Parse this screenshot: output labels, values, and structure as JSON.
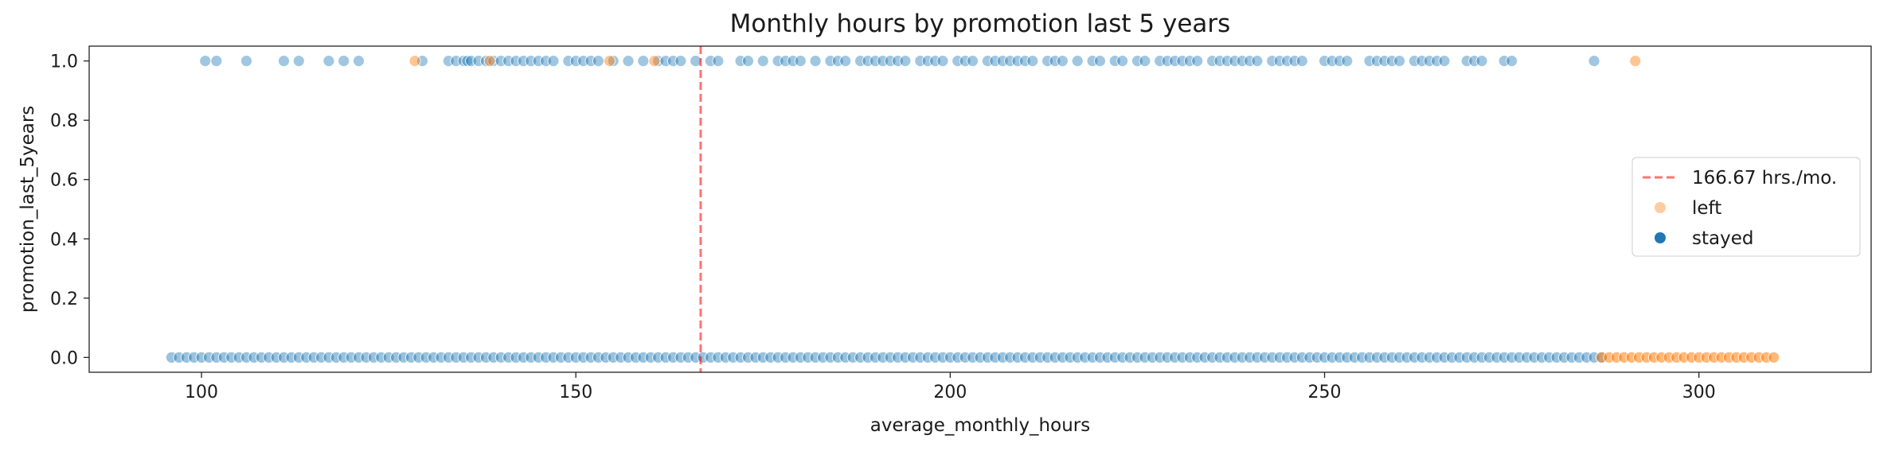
{
  "chart_data": {
    "type": "scatter",
    "title": "Monthly hours by promotion last 5 years",
    "xlabel": "average_monthly_hours",
    "ylabel": "promotion_last_5years",
    "xlim": [
      85,
      323
    ],
    "ylim": [
      -0.05,
      1.05
    ],
    "xticks": [
      100,
      150,
      200,
      250,
      300
    ],
    "yticks": [
      0.0,
      0.2,
      0.4,
      0.6,
      0.8,
      1.0
    ],
    "xtick_labels": [
      "100",
      "150",
      "200",
      "250",
      "300"
    ],
    "ytick_labels": [
      "0.0",
      "0.2",
      "0.4",
      "0.6",
      "0.8",
      "1.0"
    ],
    "grid": false,
    "legend_position": "center-right",
    "reference_line": {
      "x": 166.67,
      "label": "166.67 hrs./mo.",
      "color": "#ff0000",
      "style": "dashed"
    },
    "series": [
      {
        "name": "left",
        "color": "#ff7f0e",
        "points_y1_x": [
          128.5,
          138.5,
          154.5,
          160.5,
          291.5
        ],
        "points_y0_x": [
          287,
          310
        ]
      },
      {
        "name": "stayed",
        "color": "#1f77b4",
        "points_y1_x": [
          100.5,
          102,
          106,
          111,
          113,
          117,
          119,
          121,
          129.5,
          133,
          134,
          135,
          135.5,
          136,
          137,
          138,
          139,
          140,
          141,
          142,
          143,
          144,
          145,
          146,
          147,
          149,
          150,
          151,
          152,
          153,
          155,
          157,
          159,
          161,
          162,
          163,
          164,
          166,
          168,
          169,
          172,
          173,
          175,
          177,
          178,
          179,
          180,
          182,
          184,
          185,
          186,
          188,
          189,
          190,
          191,
          192,
          193,
          194,
          196,
          197,
          198,
          199,
          201,
          202,
          203,
          205,
          206,
          207,
          208,
          209,
          210,
          211,
          213,
          214,
          215,
          217,
          219,
          220,
          222,
          223,
          225,
          226,
          228,
          229,
          230,
          231,
          232,
          233,
          235,
          236,
          237,
          238,
          239,
          240,
          241,
          243,
          244,
          245,
          246,
          247,
          250,
          251,
          252,
          253,
          256,
          257,
          258,
          259,
          260,
          262,
          263,
          264,
          265,
          266,
          269,
          270,
          271,
          274,
          275,
          286
        ],
        "points_y0_x": [
          96,
          287
        ]
      }
    ]
  }
}
